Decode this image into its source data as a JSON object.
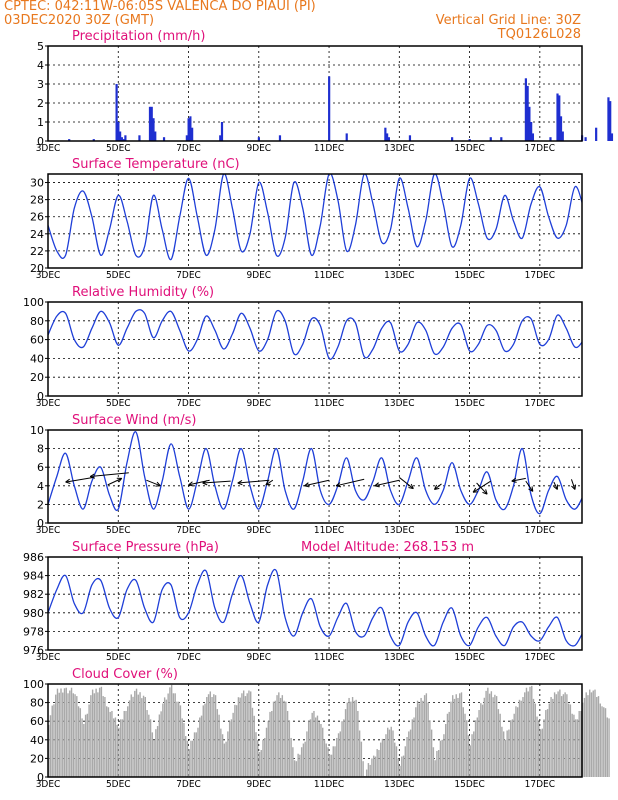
{
  "header": {
    "line1_left": "CPTEC:   042:11W-06:05S   VALENCA DO PIAUI (PI)",
    "line2_left": "03DEC2020 30Z (GMT)",
    "line2_right": "Vertical Grid Line: 30Z",
    "line3_right": "TQ0126L028"
  },
  "colors": {
    "header_text": "#e8781e",
    "panel_title": "#e0107a",
    "line_series": "#1f3fd8",
    "precip_bars": "#1f2fd0",
    "cloud_bars": "#a9a9a9",
    "wind_arrows": "#000000"
  },
  "chart_data": [
    {
      "type": "bar",
      "title": "Precipitation (mm/h)",
      "ylim": [
        0,
        5
      ],
      "yticks": [
        "0",
        "1",
        "2",
        "3",
        "4",
        "5"
      ],
      "xticks": [
        "3DEC",
        "5DEC",
        "7DEC",
        "9DEC",
        "11DEC",
        "13DEC",
        "15DEC",
        "17DEC"
      ],
      "x_unit": "days since 3DEC 00Z",
      "series": [
        {
          "x": [
            0.6,
            1.3,
            1.95,
            2.0,
            2.05,
            2.1,
            2.15,
            2.2,
            2.6,
            2.9,
            2.95,
            3.0,
            3.05,
            3.3,
            3.95,
            4.0,
            4.05,
            4.1,
            4.9,
            4.95,
            6.0,
            6.6,
            8.0,
            8.5,
            9.6,
            9.65,
            9.7,
            10.3,
            11.5,
            12.0,
            12.6,
            12.9,
            13.6,
            13.65,
            13.7,
            13.75,
            13.8,
            14.3,
            14.5,
            14.55,
            14.6,
            14.65,
            15.2,
            15.3,
            15.6,
            15.95,
            16.0,
            16.05
          ],
          "values": [
            0.1,
            0.1,
            3.0,
            1.0,
            0.5,
            0.2,
            0.1,
            0.3,
            0.3,
            1.8,
            1.8,
            1.2,
            0.5,
            0.2,
            0.3,
            1.2,
            1.3,
            0.7,
            0.3,
            1.0,
            0.2,
            0.3,
            3.4,
            0.4,
            0.7,
            0.4,
            0.2,
            0.3,
            0.2,
            0.1,
            0.2,
            0.2,
            3.3,
            2.9,
            1.8,
            1.0,
            0.4,
            0.2,
            2.5,
            2.4,
            1.3,
            0.5,
            0.3,
            0.2,
            0.7,
            2.3,
            2.1,
            0.4
          ]
        }
      ]
    },
    {
      "type": "line",
      "title": "Surface Temperature (nC)",
      "ylim": [
        20,
        31
      ],
      "yticks": [
        "20",
        "22",
        "24",
        "26",
        "28",
        "30"
      ],
      "xticks": [
        "3DEC",
        "5DEC",
        "7DEC",
        "9DEC",
        "11DEC",
        "13DEC",
        "15DEC",
        "17DEC"
      ],
      "x_unit": "days since 3DEC 00Z",
      "series": [
        {
          "x": [
            0.0,
            0.25,
            0.5,
            0.75,
            1.0,
            1.25,
            1.5,
            1.75,
            2.0,
            2.25,
            2.5,
            2.75,
            3.0,
            3.25,
            3.5,
            3.75,
            4.0,
            4.25,
            4.5,
            4.75,
            5.0,
            5.25,
            5.5,
            5.75,
            6.0,
            6.25,
            6.5,
            6.75,
            7.0,
            7.25,
            7.5,
            7.75,
            8.0,
            8.25,
            8.5,
            8.75,
            9.0,
            9.25,
            9.5,
            9.75,
            10.0,
            10.25,
            10.5,
            10.75,
            11.0,
            11.25,
            11.5,
            11.75,
            12.0,
            12.25,
            12.5,
            12.75,
            13.0,
            13.25,
            13.5,
            13.75,
            14.0,
            14.25,
            14.5,
            14.75,
            15.0,
            15.25,
            15.5,
            15.75,
            16.0
          ],
          "values": [
            25.0,
            22.0,
            21.5,
            27.0,
            29.0,
            26.0,
            21.5,
            24.5,
            28.5,
            25.5,
            21.5,
            22.5,
            28.5,
            24.5,
            21.0,
            26.0,
            30.5,
            26.0,
            21.5,
            24.5,
            31.0,
            27.0,
            22.0,
            24.0,
            30.0,
            26.5,
            21.5,
            23.5,
            30.0,
            27.0,
            21.5,
            25.0,
            31.0,
            28.0,
            22.0,
            25.0,
            31.0,
            27.5,
            23.0,
            24.5,
            30.5,
            27.0,
            22.5,
            25.5,
            31.0,
            27.5,
            22.5,
            25.0,
            30.5,
            27.5,
            23.5,
            24.5,
            28.5,
            25.5,
            23.5,
            27.5,
            29.5,
            26.0,
            23.5,
            25.0,
            29.5,
            27.0,
            23.5,
            25.5,
            28.0
          ]
        }
      ]
    },
    {
      "type": "line",
      "title": "Relative Humidity (%)",
      "ylim": [
        0,
        100
      ],
      "yticks": [
        "0",
        "20",
        "40",
        "60",
        "80",
        "100"
      ],
      "xticks": [
        "3DEC",
        "5DEC",
        "7DEC",
        "9DEC",
        "11DEC",
        "13DEC",
        "15DEC",
        "17DEC"
      ],
      "x_unit": "days since 3DEC 00Z",
      "series": [
        {
          "x": [
            0.0,
            0.25,
            0.5,
            0.75,
            1.0,
            1.25,
            1.5,
            1.75,
            2.0,
            2.25,
            2.5,
            2.75,
            3.0,
            3.25,
            3.5,
            3.75,
            4.0,
            4.25,
            4.5,
            4.75,
            5.0,
            5.25,
            5.5,
            5.75,
            6.0,
            6.25,
            6.5,
            6.75,
            7.0,
            7.25,
            7.5,
            7.75,
            8.0,
            8.25,
            8.5,
            8.75,
            9.0,
            9.25,
            9.5,
            9.75,
            10.0,
            10.25,
            10.5,
            10.75,
            11.0,
            11.25,
            11.5,
            11.75,
            12.0,
            12.25,
            12.5,
            12.75,
            13.0,
            13.25,
            13.5,
            13.75,
            14.0,
            14.25,
            14.5,
            14.75,
            15.0,
            15.25,
            15.5,
            15.75,
            16.0
          ],
          "values": [
            65.0,
            85.0,
            88.0,
            60.0,
            52.0,
            72.0,
            90.0,
            78.0,
            54.0,
            72.0,
            90.0,
            88.0,
            62.0,
            80.0,
            90.0,
            70.0,
            48.0,
            60.0,
            85.0,
            70.0,
            50.0,
            66.0,
            88.0,
            72.0,
            48.0,
            60.0,
            90.0,
            80.0,
            45.0,
            55.0,
            82.0,
            75.0,
            40.0,
            52.0,
            80.0,
            78.0,
            42.0,
            50.0,
            72.0,
            78.0,
            48.0,
            55.0,
            78.0,
            70.0,
            45.0,
            52.0,
            72.0,
            76.0,
            48.0,
            55.0,
            75.0,
            70.0,
            48.0,
            55.0,
            80.0,
            82.0,
            55.0,
            60.0,
            86.0,
            72.0,
            52.0,
            60.0,
            78.0,
            64.0,
            50.0
          ]
        }
      ]
    },
    {
      "type": "line",
      "title": "Surface Wind (m/s)",
      "ylim": [
        0,
        10
      ],
      "yticks": [
        "0",
        "2",
        "4",
        "6",
        "8",
        "10"
      ],
      "xticks": [
        "3DEC",
        "5DEC",
        "7DEC",
        "9DEC",
        "11DEC",
        "13DEC",
        "15DEC",
        "17DEC"
      ],
      "x_unit": "days since 3DEC 00Z",
      "series": [
        {
          "x": [
            0.0,
            0.25,
            0.5,
            0.75,
            1.0,
            1.25,
            1.5,
            1.75,
            2.0,
            2.25,
            2.5,
            2.75,
            3.0,
            3.25,
            3.5,
            3.75,
            4.0,
            4.25,
            4.5,
            4.75,
            5.0,
            5.25,
            5.5,
            5.75,
            6.0,
            6.25,
            6.5,
            6.75,
            7.0,
            7.25,
            7.5,
            7.75,
            8.0,
            8.25,
            8.5,
            8.75,
            9.0,
            9.25,
            9.5,
            9.75,
            10.0,
            10.25,
            10.5,
            10.75,
            11.0,
            11.25,
            11.5,
            11.75,
            12.0,
            12.25,
            12.5,
            12.75,
            13.0,
            13.25,
            13.5,
            13.75,
            14.0,
            14.25,
            14.5,
            14.75,
            15.0,
            15.25,
            15.5,
            15.75,
            16.0
          ],
          "values": [
            2.0,
            5.0,
            7.5,
            4.0,
            1.5,
            4.5,
            6.0,
            3.0,
            1.5,
            6.5,
            9.8,
            5.0,
            1.5,
            4.5,
            8.5,
            5.0,
            1.5,
            4.5,
            8.0,
            4.0,
            1.5,
            4.5,
            8.0,
            4.0,
            1.5,
            4.5,
            8.0,
            3.5,
            1.5,
            4.5,
            8.0,
            3.5,
            2.0,
            4.0,
            7.0,
            3.5,
            2.5,
            4.5,
            7.0,
            3.5,
            2.0,
            4.5,
            7.0,
            3.5,
            2.0,
            3.5,
            6.5,
            3.5,
            2.0,
            3.5,
            5.5,
            2.5,
            1.5,
            4.0,
            8.0,
            3.0,
            1.0,
            3.5,
            5.0,
            2.5,
            1.5,
            3.0,
            4.5,
            2.0,
            3.0
          ]
        }
      ],
      "arrows_note": "wind direction arrows"
    },
    {
      "type": "line",
      "title": "Surface Pressure (hPa)",
      "annotation": "Model Altitude: 268.153 m",
      "ylim": [
        976,
        986
      ],
      "yticks": [
        "976",
        "978",
        "980",
        "982",
        "984",
        "986"
      ],
      "xticks": [
        "3DEC",
        "5DEC",
        "7DEC",
        "9DEC",
        "11DEC",
        "13DEC",
        "15DEC",
        "17DEC"
      ],
      "x_unit": "days since 3DEC 00Z",
      "series": [
        {
          "x": [
            0.0,
            0.25,
            0.5,
            0.75,
            1.0,
            1.25,
            1.5,
            1.75,
            2.0,
            2.25,
            2.5,
            2.75,
            3.0,
            3.25,
            3.5,
            3.75,
            4.0,
            4.25,
            4.5,
            4.75,
            5.0,
            5.25,
            5.5,
            5.75,
            6.0,
            6.25,
            6.5,
            6.75,
            7.0,
            7.25,
            7.5,
            7.75,
            8.0,
            8.25,
            8.5,
            8.75,
            9.0,
            9.25,
            9.5,
            9.75,
            10.0,
            10.25,
            10.5,
            10.75,
            11.0,
            11.25,
            11.5,
            11.75,
            12.0,
            12.25,
            12.5,
            12.75,
            13.0,
            13.25,
            13.5,
            13.75,
            14.0,
            14.25,
            14.5,
            14.75,
            15.0,
            15.25,
            15.5,
            15.75,
            16.0
          ],
          "values": [
            980.0,
            982.5,
            984.0,
            981.0,
            980.0,
            983.0,
            983.5,
            980.5,
            979.5,
            982.5,
            983.5,
            980.5,
            979.0,
            982.5,
            983.0,
            979.5,
            980.0,
            983.0,
            984.5,
            980.5,
            979.0,
            982.0,
            984.0,
            981.0,
            979.0,
            983.0,
            984.5,
            979.5,
            977.5,
            980.0,
            981.5,
            978.5,
            977.5,
            979.5,
            981.0,
            978.0,
            977.5,
            979.5,
            980.5,
            977.5,
            976.5,
            979.0,
            980.0,
            977.5,
            976.5,
            979.0,
            980.5,
            977.5,
            976.5,
            978.5,
            979.5,
            977.5,
            976.5,
            978.5,
            979.0,
            977.5,
            977.0,
            978.5,
            979.5,
            977.0,
            976.5,
            978.0,
            979.0,
            976.5,
            977.0
          ]
        }
      ]
    },
    {
      "type": "area",
      "title": "Cloud Cover (%)",
      "ylim": [
        0,
        100
      ],
      "yticks": [
        "0",
        "20",
        "40",
        "60",
        "80",
        "100"
      ],
      "xticks": [
        "3DEC",
        "5DEC",
        "7DEC",
        "9DEC",
        "11DEC",
        "13DEC",
        "15DEC",
        "17DEC"
      ],
      "x_unit": "days since 3DEC 00Z",
      "series": [
        {
          "x": [
            0.0,
            0.25,
            0.5,
            0.75,
            1.0,
            1.25,
            1.5,
            1.75,
            2.0,
            2.25,
            2.5,
            2.75,
            3.0,
            3.25,
            3.5,
            3.75,
            4.0,
            4.25,
            4.5,
            4.75,
            5.0,
            5.25,
            5.5,
            5.75,
            6.0,
            6.25,
            6.5,
            6.75,
            7.0,
            7.25,
            7.5,
            7.75,
            8.0,
            8.25,
            8.5,
            8.75,
            9.0,
            9.25,
            9.5,
            9.75,
            10.0,
            10.25,
            10.5,
            10.75,
            11.0,
            11.25,
            11.5,
            11.75,
            12.0,
            12.25,
            12.5,
            12.75,
            13.0,
            13.25,
            13.5,
            13.75,
            14.0,
            14.25,
            14.5,
            14.75,
            15.0,
            15.25,
            15.5,
            15.75,
            16.0
          ],
          "values": [
            60.0,
            92.0,
            95.0,
            90.0,
            60.0,
            90.0,
            95.0,
            70.0,
            55.0,
            80.0,
            92.0,
            85.0,
            40.0,
            82.0,
            95.0,
            75.0,
            30.0,
            55.0,
            90.0,
            85.0,
            35.0,
            70.0,
            93.0,
            88.0,
            25.0,
            60.0,
            90.0,
            85.0,
            15.0,
            35.0,
            70.0,
            60.0,
            20.0,
            45.0,
            80.0,
            85.0,
            5.0,
            20.0,
            40.0,
            55.0,
            15.0,
            45.0,
            80.0,
            90.0,
            20.0,
            50.0,
            85.0,
            90.0,
            35.0,
            75.0,
            92.0,
            85.0,
            40.0,
            70.0,
            90.0,
            95.0,
            50.0,
            80.0,
            95.0,
            85.0,
            60.0,
            85.0,
            95.0,
            80.0,
            55.0
          ]
        }
      ]
    }
  ]
}
